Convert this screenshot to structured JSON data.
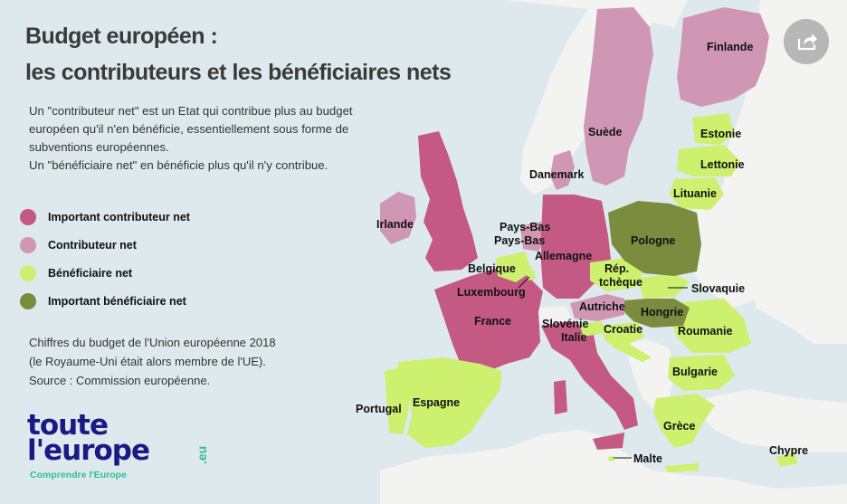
{
  "title": {
    "line1": "Budget européen :",
    "line2": "les contributeurs et les bénéficiaires nets"
  },
  "description": [
    "Un \"contributeur net\" est un Etat qui contribue plus au budget",
    "européen qu'il n'en bénéficie, essentiellement sous forme de",
    "subventions européennes.",
    "Un \"bénéficiaire net\" en bénéficie plus qu'il n'y contribue."
  ],
  "legend": [
    {
      "label": "Important contributeur net",
      "color": "#c45a84"
    },
    {
      "label": "Contributeur net",
      "color": "#cf97b3"
    },
    {
      "label": "Bénéficiaire net",
      "color": "#cdf06e"
    },
    {
      "label": "Important bénéficiaire net",
      "color": "#7b8c3e"
    }
  ],
  "source": [
    "Chiffres du budget de l'Union européenne 2018",
    "(le Royaume-Uni était alors membre de l'UE).",
    "Source : Commission européenne."
  ],
  "logo": {
    "line1": "toute",
    "line2": "l'europe",
    "suffix": ".eu",
    "tagline": "Comprendre l'Europe"
  },
  "share_button": {
    "icon": "share-icon"
  },
  "colors": {
    "sea": "#dde9ec",
    "land": "#f3f3f1",
    "important_contributor": "#c45a84",
    "contributor": "#cf97b3",
    "beneficiary": "#cdf06e",
    "important_beneficiary": "#7b8c3e"
  },
  "countries": {
    "finland": "Finlande",
    "sweden": "Suède",
    "estonia": "Estonie",
    "latvia": "Lettonie",
    "lithuania": "Lituanie",
    "denmark": "Danemark",
    "ireland": "Irlande",
    "netherlands_1": "Pays-Bas",
    "netherlands_2": "Pays-Bas",
    "germany": "Allemagne",
    "poland": "Pologne",
    "belgium": "Belgique",
    "luxembourg": "Luxembourg",
    "czech_1": "Rép.",
    "czech_2": "tchèque",
    "slovakia": "Slovaquie",
    "austria": "Autriche",
    "hungary": "Hongrie",
    "france": "France",
    "slovenia": "Slovénie",
    "italy": "Italie",
    "croatia": "Croatie",
    "romania": "Roumanie",
    "bulgaria": "Bulgarie",
    "portugal": "Portugal",
    "spain": "Espagne",
    "greece": "Grèce",
    "malta": "Malte",
    "cyprus": "Chypre"
  }
}
